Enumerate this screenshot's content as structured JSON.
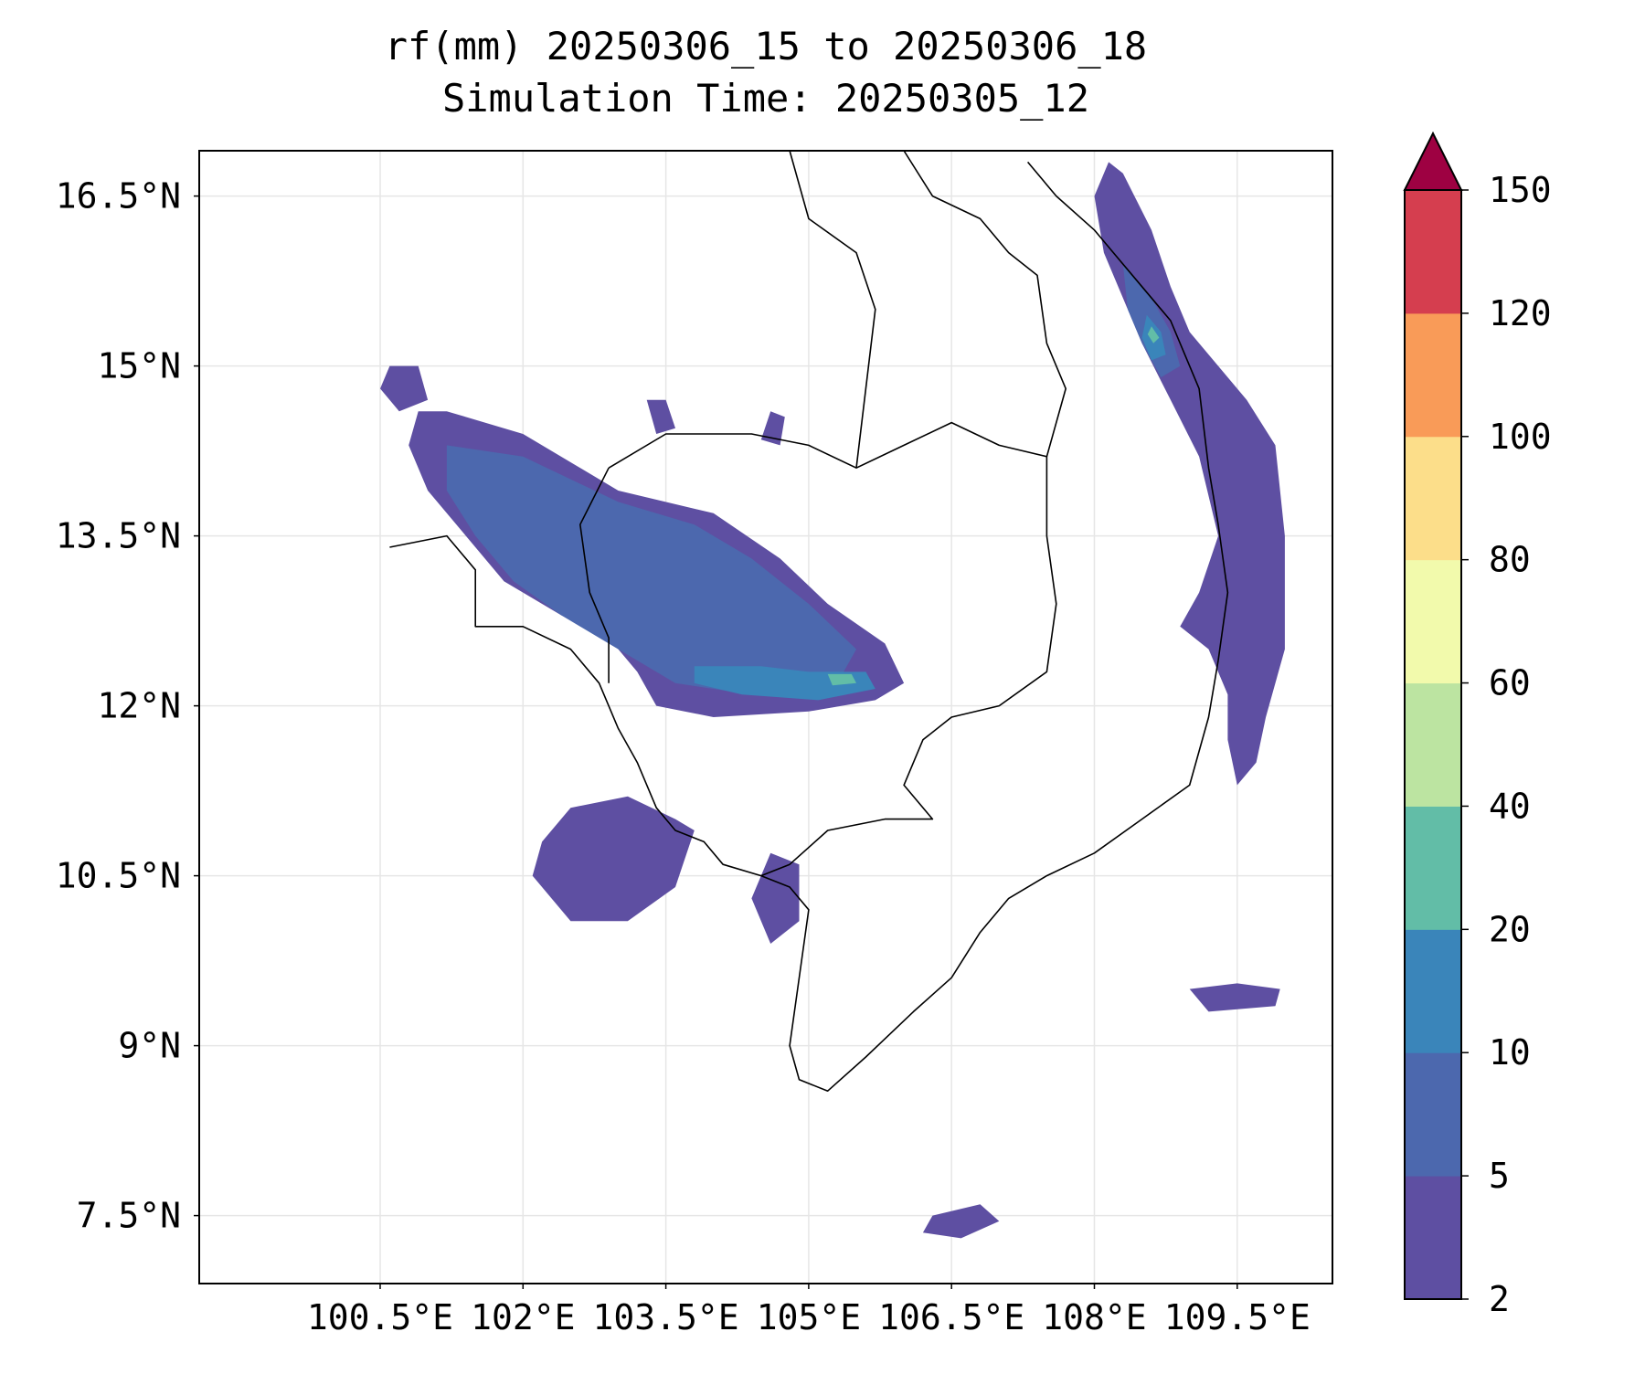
{
  "title": {
    "line1": "rf(mm) 20250306_15 to 20250306_18",
    "line2": "Simulation Time: 20250305_12"
  },
  "map": {
    "lon_range": [
      98.6,
      110.5
    ],
    "lat_range": [
      6.9,
      16.9
    ],
    "x_ticks": [
      {
        "value": 100.5,
        "label": "100.5°E"
      },
      {
        "value": 102.0,
        "label": "102°E"
      },
      {
        "value": 103.5,
        "label": "103.5°E"
      },
      {
        "value": 105.0,
        "label": "105°E"
      },
      {
        "value": 106.5,
        "label": "106.5°E"
      },
      {
        "value": 108.0,
        "label": "108°E"
      },
      {
        "value": 109.5,
        "label": "109.5°E"
      }
    ],
    "y_ticks": [
      {
        "value": 16.5,
        "label": "16.5°N"
      },
      {
        "value": 15.0,
        "label": "15°N"
      },
      {
        "value": 13.5,
        "label": "13.5°N"
      },
      {
        "value": 12.0,
        "label": "12°N"
      },
      {
        "value": 10.5,
        "label": "10.5°N"
      },
      {
        "value": 9.0,
        "label": "9°N"
      },
      {
        "value": 7.5,
        "label": "7.5°N"
      }
    ],
    "grid": true,
    "rain_areas": [
      {
        "level": 2,
        "points": [
          [
            100.9,
            14.6
          ],
          [
            101.2,
            14.6
          ],
          [
            102.0,
            14.4
          ],
          [
            103.0,
            13.9
          ],
          [
            104.0,
            13.7
          ],
          [
            104.7,
            13.3
          ],
          [
            105.2,
            12.9
          ],
          [
            105.8,
            12.55
          ],
          [
            106.0,
            12.2
          ],
          [
            105.7,
            12.05
          ],
          [
            105.0,
            11.95
          ],
          [
            104.0,
            11.9
          ],
          [
            103.4,
            12.0
          ],
          [
            103.2,
            12.3
          ],
          [
            102.9,
            12.6
          ],
          [
            102.4,
            12.8
          ],
          [
            101.8,
            13.1
          ],
          [
            101.4,
            13.5
          ],
          [
            101.0,
            13.9
          ],
          [
            100.8,
            14.3
          ]
        ]
      },
      {
        "level": 5,
        "points": [
          [
            101.2,
            14.3
          ],
          [
            102.0,
            14.2
          ],
          [
            103.0,
            13.8
          ],
          [
            103.8,
            13.6
          ],
          [
            104.4,
            13.3
          ],
          [
            105.0,
            12.9
          ],
          [
            105.5,
            12.5
          ],
          [
            105.3,
            12.2
          ],
          [
            104.4,
            12.1
          ],
          [
            103.6,
            12.2
          ],
          [
            103.0,
            12.5
          ],
          [
            102.4,
            12.8
          ],
          [
            101.9,
            13.1
          ],
          [
            101.5,
            13.5
          ],
          [
            101.2,
            13.9
          ]
        ]
      },
      {
        "level": 10,
        "points": [
          [
            103.8,
            12.35
          ],
          [
            104.5,
            12.35
          ],
          [
            105.0,
            12.3
          ],
          [
            105.6,
            12.3
          ],
          [
            105.7,
            12.15
          ],
          [
            105.1,
            12.05
          ],
          [
            104.3,
            12.1
          ],
          [
            103.8,
            12.2
          ]
        ]
      },
      {
        "level": 20,
        "points": [
          [
            105.2,
            12.28
          ],
          [
            105.45,
            12.28
          ],
          [
            105.5,
            12.2
          ],
          [
            105.25,
            12.18
          ]
        ]
      },
      {
        "level": 2,
        "points": [
          [
            102.5,
            11.1
          ],
          [
            103.1,
            11.2
          ],
          [
            103.6,
            11.0
          ],
          [
            103.8,
            10.9
          ],
          [
            103.6,
            10.4
          ],
          [
            103.1,
            10.1
          ],
          [
            102.5,
            10.1
          ],
          [
            102.1,
            10.5
          ],
          [
            102.2,
            10.8
          ]
        ]
      },
      {
        "level": 2,
        "points": [
          [
            104.6,
            10.7
          ],
          [
            104.9,
            10.6
          ],
          [
            104.9,
            10.1
          ],
          [
            104.6,
            9.9
          ],
          [
            104.4,
            10.3
          ]
        ]
      },
      {
        "level": 2,
        "points": [
          [
            100.6,
            15.0
          ],
          [
            100.9,
            15.0
          ],
          [
            101.0,
            14.7
          ],
          [
            100.7,
            14.6
          ],
          [
            100.5,
            14.8
          ]
        ]
      },
      {
        "level": 2,
        "points": [
          [
            108.15,
            16.8
          ],
          [
            108.3,
            16.7
          ],
          [
            108.6,
            16.2
          ],
          [
            108.8,
            15.7
          ],
          [
            109.0,
            15.3
          ],
          [
            109.3,
            15.0
          ],
          [
            109.6,
            14.7
          ],
          [
            109.9,
            14.3
          ],
          [
            110.0,
            13.5
          ],
          [
            110.0,
            12.5
          ],
          [
            109.8,
            11.9
          ],
          [
            109.7,
            11.5
          ],
          [
            109.5,
            11.3
          ],
          [
            109.4,
            11.7
          ],
          [
            109.4,
            12.1
          ],
          [
            109.2,
            12.5
          ],
          [
            108.9,
            12.7
          ],
          [
            109.1,
            13.0
          ],
          [
            109.3,
            13.5
          ],
          [
            109.1,
            14.2
          ],
          [
            108.8,
            14.7
          ],
          [
            108.5,
            15.2
          ],
          [
            108.3,
            15.6
          ],
          [
            108.1,
            16.0
          ],
          [
            108.0,
            16.5
          ]
        ]
      },
      {
        "level": 5,
        "points": [
          [
            108.3,
            15.9
          ],
          [
            108.6,
            15.6
          ],
          [
            108.8,
            15.3
          ],
          [
            108.9,
            15.0
          ],
          [
            108.7,
            14.9
          ],
          [
            108.5,
            15.2
          ],
          [
            108.35,
            15.5
          ]
        ]
      },
      {
        "level": 10,
        "points": [
          [
            108.55,
            15.45
          ],
          [
            108.7,
            15.3
          ],
          [
            108.75,
            15.1
          ],
          [
            108.6,
            15.05
          ],
          [
            108.5,
            15.25
          ]
        ]
      },
      {
        "level": 20,
        "points": [
          [
            108.6,
            15.35
          ],
          [
            108.68,
            15.25
          ],
          [
            108.62,
            15.2
          ],
          [
            108.56,
            15.28
          ]
        ]
      },
      {
        "level": 2,
        "points": [
          [
            109.0,
            9.5
          ],
          [
            109.5,
            9.55
          ],
          [
            109.95,
            9.5
          ],
          [
            109.9,
            9.35
          ],
          [
            109.2,
            9.3
          ]
        ]
      },
      {
        "level": 2,
        "points": [
          [
            106.3,
            7.5
          ],
          [
            106.8,
            7.6
          ],
          [
            107.0,
            7.45
          ],
          [
            106.6,
            7.3
          ],
          [
            106.2,
            7.35
          ]
        ]
      },
      {
        "level": 2,
        "points": [
          [
            103.3,
            14.7
          ],
          [
            103.5,
            14.7
          ],
          [
            103.6,
            14.45
          ],
          [
            103.4,
            14.4
          ]
        ]
      },
      {
        "level": 2,
        "points": [
          [
            104.6,
            14.6
          ],
          [
            104.75,
            14.55
          ],
          [
            104.7,
            14.3
          ],
          [
            104.5,
            14.35
          ]
        ]
      }
    ],
    "land_boundaries": [
      [
        [
          100.6,
          13.4
        ],
        [
          101.2,
          13.5
        ],
        [
          101.5,
          13.2
        ],
        [
          101.5,
          12.7
        ],
        [
          102.0,
          12.7
        ],
        [
          102.5,
          12.5
        ],
        [
          102.8,
          12.2
        ],
        [
          103.0,
          11.8
        ],
        [
          103.2,
          11.5
        ],
        [
          103.4,
          11.1
        ],
        [
          103.6,
          10.9
        ],
        [
          103.9,
          10.8
        ],
        [
          104.1,
          10.6
        ],
        [
          104.5,
          10.5
        ],
        [
          104.8,
          10.4
        ],
        [
          105.0,
          10.2
        ],
        [
          104.9,
          9.6
        ],
        [
          104.8,
          9.0
        ],
        [
          104.9,
          8.7
        ],
        [
          105.2,
          8.6
        ],
        [
          105.6,
          8.9
        ],
        [
          106.1,
          9.3
        ],
        [
          106.5,
          9.6
        ],
        [
          106.8,
          10.0
        ],
        [
          107.1,
          10.3
        ],
        [
          107.5,
          10.5
        ],
        [
          108.0,
          10.7
        ],
        [
          108.5,
          11.0
        ],
        [
          109.0,
          11.3
        ],
        [
          109.2,
          11.9
        ],
        [
          109.3,
          12.4
        ],
        [
          109.4,
          13.0
        ],
        [
          109.3,
          13.6
        ],
        [
          109.2,
          14.1
        ],
        [
          109.1,
          14.8
        ],
        [
          108.8,
          15.4
        ],
        [
          108.5,
          15.7
        ],
        [
          108.2,
          16.0
        ],
        [
          108.0,
          16.2
        ],
        [
          107.6,
          16.5
        ],
        [
          107.3,
          16.8
        ]
      ],
      [
        [
          102.9,
          14.1
        ],
        [
          103.5,
          14.4
        ],
        [
          104.4,
          14.4
        ],
        [
          105.0,
          14.3
        ],
        [
          105.5,
          14.1
        ],
        [
          106.0,
          14.3
        ],
        [
          106.5,
          14.5
        ],
        [
          107.0,
          14.3
        ],
        [
          107.5,
          14.2
        ],
        [
          107.5,
          13.5
        ],
        [
          107.6,
          12.9
        ],
        [
          107.5,
          12.3
        ],
        [
          107.0,
          12.0
        ],
        [
          106.5,
          11.9
        ],
        [
          106.2,
          11.7
        ],
        [
          106.0,
          11.3
        ],
        [
          106.3,
          11.0
        ],
        [
          105.8,
          11.0
        ],
        [
          105.2,
          10.9
        ],
        [
          104.8,
          10.6
        ],
        [
          104.5,
          10.5
        ]
      ],
      [
        [
          102.9,
          14.1
        ],
        [
          102.6,
          13.6
        ],
        [
          102.7,
          13.0
        ],
        [
          102.9,
          12.6
        ],
        [
          102.9,
          12.2
        ]
      ],
      [
        [
          105.5,
          14.1
        ],
        [
          105.6,
          14.8
        ],
        [
          105.7,
          15.5
        ],
        [
          105.5,
          16.0
        ],
        [
          105.0,
          16.3
        ],
        [
          104.8,
          16.9
        ]
      ],
      [
        [
          106.0,
          16.9
        ],
        [
          106.3,
          16.5
        ],
        [
          106.8,
          16.3
        ],
        [
          107.1,
          16.0
        ],
        [
          107.4,
          15.8
        ],
        [
          107.5,
          15.2
        ],
        [
          107.7,
          14.8
        ],
        [
          107.5,
          14.2
        ]
      ]
    ]
  },
  "colorbar": {
    "levels": [
      2,
      5,
      10,
      20,
      40,
      60,
      80,
      100,
      120,
      150
    ],
    "labels": [
      "2",
      "5",
      "10",
      "20",
      "40",
      "60",
      "80",
      "100",
      "120",
      "150"
    ],
    "colors": [
      "#5E4FA2",
      "#4C68AE",
      "#3A85BA",
      "#62BDA7",
      "#BCE4A1",
      "#F2FAAC",
      "#FCDE8A",
      "#F99B58",
      "#D53E4F"
    ],
    "extend_color": "#9E0142"
  }
}
